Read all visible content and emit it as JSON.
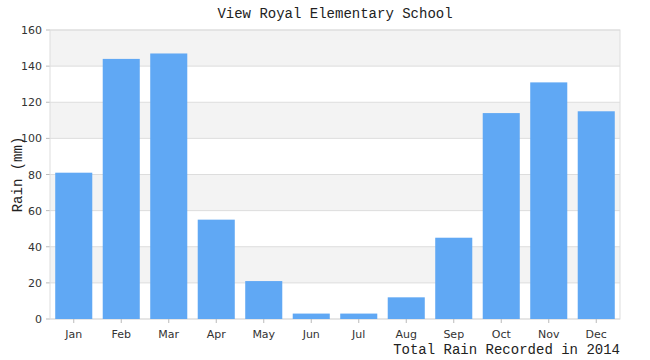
{
  "chart_data": {
    "type": "bar",
    "title": "View Royal Elementary School",
    "y_label": "Rain (mm)",
    "x_label": "Total Rain Recorded in 2014",
    "categories": [
      "Jan",
      "Feb",
      "Mar",
      "Apr",
      "May",
      "Jun",
      "Jul",
      "Aug",
      "Sep",
      "Oct",
      "Nov",
      "Dec"
    ],
    "values": [
      81,
      144,
      147,
      55,
      21,
      3,
      3,
      12,
      45,
      114,
      131,
      115
    ],
    "color": "#60a8f4",
    "ylim": [
      0,
      160
    ],
    "yticks": [
      0,
      20,
      40,
      60,
      80,
      100,
      120,
      140,
      160
    ],
    "grid": true
  }
}
